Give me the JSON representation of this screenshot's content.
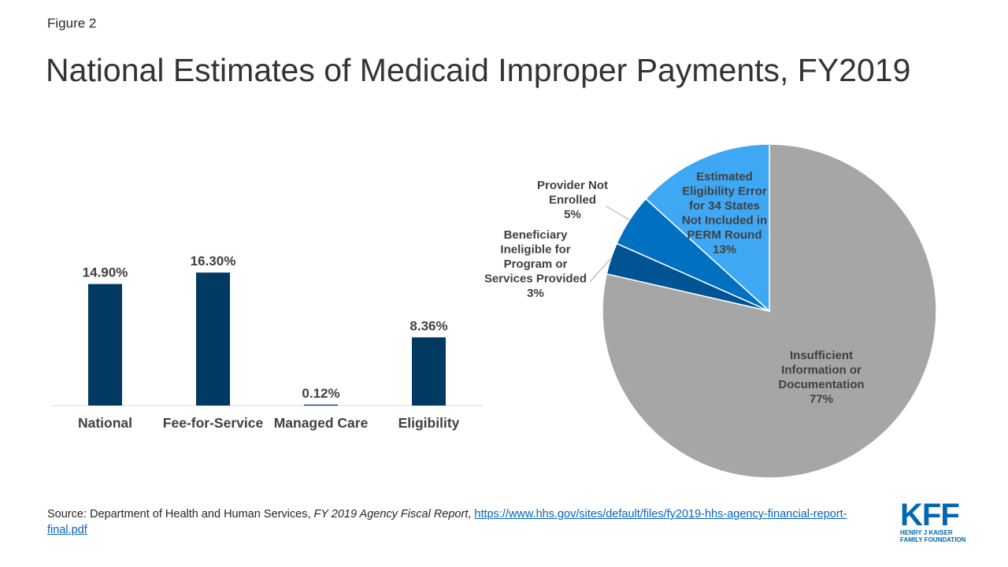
{
  "figure_label": "Figure 2",
  "title": "National Estimates of Medicaid Improper Payments, FY2019",
  "source": {
    "prefix": "Source: Department of Health and Human Services, ",
    "report": "FY 2019 Agency Fiscal Report",
    "sep": ", ",
    "url": "https://www.hhs.gov/sites/default/files/fy2019-hhs-agency-financial-report-final.pdf"
  },
  "logo": {
    "text": "KFF",
    "line1": "HENRY J KAISER",
    "line2": "FAMILY FOUNDATION"
  },
  "colors": {
    "bar": "#003a63",
    "slice_gray": "#a6a6a6",
    "slice_light": "#3fa8f4",
    "slice_mid": "#0070c0",
    "slice_dark": "#005494"
  },
  "chart_data": [
    {
      "type": "bar",
      "categories": [
        "National",
        "Fee-for-Service",
        "Managed Care",
        "Eligibility"
      ],
      "values": [
        14.9,
        16.3,
        0.12,
        8.36
      ],
      "data_labels": [
        "14.90%",
        "16.30%",
        "0.12%",
        "8.36%"
      ],
      "ylim": [
        0,
        25
      ],
      "grid": false
    },
    {
      "type": "pie",
      "slices": [
        {
          "label": "Insufficient Information or Documentation",
          "lines": [
            "Insufficient",
            "Information or",
            "Documentation",
            "77%"
          ],
          "value": 77,
          "color": "#a6a6a6"
        },
        {
          "label": "Beneficiary Ineligible for Program or Services Provided",
          "lines": [
            "Beneficiary",
            "Ineligible for",
            "Program or",
            "Services Provided",
            "3%"
          ],
          "value": 3,
          "color": "#005494"
        },
        {
          "label": "Provider Not Enrolled",
          "lines": [
            "Provider Not",
            "Enrolled",
            "5%"
          ],
          "value": 5,
          "color": "#0070c0"
        },
        {
          "label": "Estimated Eligibility Error for 34 States Not Included in PERM Round",
          "lines": [
            "Estimated",
            "Eligibility  Error",
            "for 34 States",
            "Not Included in",
            "PERM Round",
            "13%"
          ],
          "value": 13,
          "color": "#3fa8f4"
        }
      ]
    }
  ]
}
